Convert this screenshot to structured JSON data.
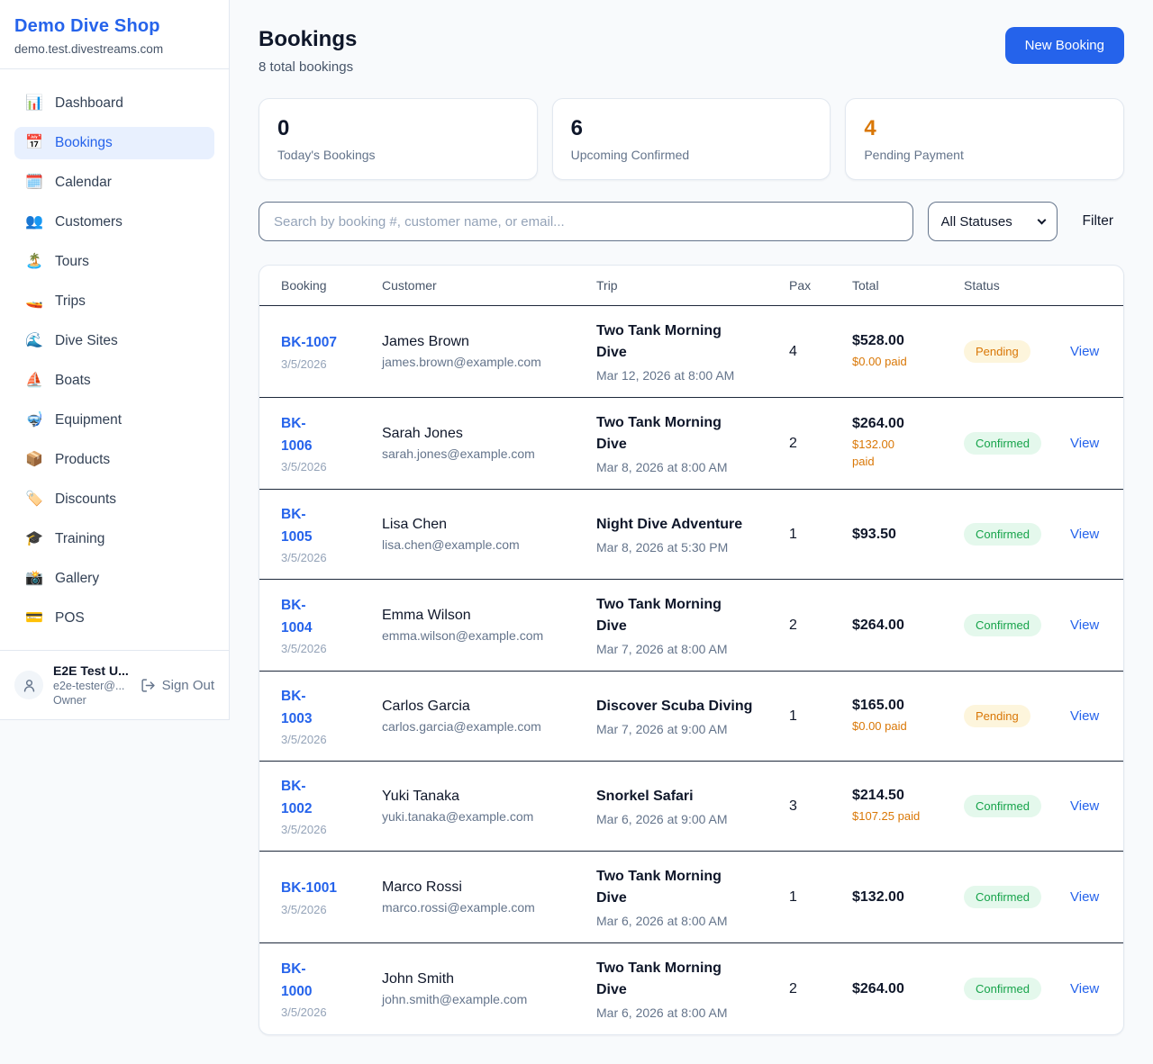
{
  "colors": {
    "accent": "#2563eb",
    "pending_bg": "#fdf5dc",
    "pending_text": "#d97706",
    "confirmed_bg": "#e4f8ec",
    "confirmed_text": "#16a34a",
    "paid_orange": "#d97706",
    "stat_default": "#0f172a",
    "stat_warning": "#d97706"
  },
  "sidebar": {
    "brand": {
      "name": "Demo Dive Shop",
      "domain": "demo.test.divestreams.com"
    },
    "items": [
      {
        "icon": "📊",
        "label": "Dashboard",
        "active": false
      },
      {
        "icon": "📅",
        "label": "Bookings",
        "active": true
      },
      {
        "icon": "🗓️",
        "label": "Calendar",
        "active": false
      },
      {
        "icon": "👥",
        "label": "Customers",
        "active": false
      },
      {
        "icon": "🏝️",
        "label": "Tours",
        "active": false
      },
      {
        "icon": "🚤",
        "label": "Trips",
        "active": false
      },
      {
        "icon": "🌊",
        "label": "Dive Sites",
        "active": false
      },
      {
        "icon": "⛵",
        "label": "Boats",
        "active": false
      },
      {
        "icon": "🤿",
        "label": "Equipment",
        "active": false
      },
      {
        "icon": "📦",
        "label": "Products",
        "active": false
      },
      {
        "icon": "🏷️",
        "label": "Discounts",
        "active": false
      },
      {
        "icon": "🎓",
        "label": "Training",
        "active": false
      },
      {
        "icon": "📸",
        "label": "Gallery",
        "active": false
      },
      {
        "icon": "💳",
        "label": "POS",
        "active": false
      }
    ],
    "user": {
      "name": "E2E Test U...",
      "email": "e2e-tester@...",
      "role": "Owner",
      "sign_out_label": "Sign Out"
    }
  },
  "header": {
    "title": "Bookings",
    "subtitle": "8 total bookings",
    "new_booking_label": "New Booking"
  },
  "stats": [
    {
      "value": "0",
      "label": "Today's Bookings",
      "value_color": "#0f172a"
    },
    {
      "value": "6",
      "label": "Upcoming Confirmed",
      "value_color": "#0f172a"
    },
    {
      "value": "4",
      "label": "Pending Payment",
      "value_color": "#d97706"
    }
  ],
  "filters": {
    "search_placeholder": "Search by booking #, customer name, or email...",
    "status_selected": "All Statuses",
    "filter_label": "Filter"
  },
  "table": {
    "columns": [
      "Booking",
      "Customer",
      "Trip",
      "Pax",
      "Total",
      "Status"
    ],
    "view_label": "View",
    "status_styles": {
      "Pending": {
        "bg": "#fdf5dc",
        "text": "#d97706"
      },
      "Confirmed": {
        "bg": "#e4f8ec",
        "text": "#16a34a"
      }
    },
    "rows": [
      {
        "id": "BK-1007",
        "id_display": [
          "BK-1007"
        ],
        "date": "3/5/2026",
        "customer": "James Brown",
        "email": "james.brown@example.com",
        "trip": "Two Tank Morning Dive",
        "trip_time": "Mar 12, 2026 at 8:00 AM",
        "pax": "4",
        "total": "$528.00",
        "paid_display": [
          "$0.00 paid"
        ],
        "status": "Pending"
      },
      {
        "id": "BK-1006",
        "id_display": [
          "BK-",
          "1006"
        ],
        "date": "3/5/2026",
        "customer": "Sarah Jones",
        "email": "sarah.jones@example.com",
        "trip": "Two Tank Morning Dive",
        "trip_time": "Mar 8, 2026 at 8:00 AM",
        "pax": "2",
        "total": "$264.00",
        "paid_display": [
          "$132.00",
          "paid"
        ],
        "status": "Confirmed"
      },
      {
        "id": "BK-1005",
        "id_display": [
          "BK-",
          "1005"
        ],
        "date": "3/5/2026",
        "customer": "Lisa Chen",
        "email": "lisa.chen@example.com",
        "trip": "Night Dive Adventure",
        "trip_time": "Mar 8, 2026 at 5:30 PM",
        "pax": "1",
        "total": "$93.50",
        "paid_display": null,
        "status": "Confirmed"
      },
      {
        "id": "BK-1004",
        "id_display": [
          "BK-",
          "1004"
        ],
        "date": "3/5/2026",
        "customer": "Emma Wilson",
        "email": "emma.wilson@example.com",
        "trip": "Two Tank Morning Dive",
        "trip_time": "Mar 7, 2026 at 8:00 AM",
        "pax": "2",
        "total": "$264.00",
        "paid_display": null,
        "status": "Confirmed"
      },
      {
        "id": "BK-1003",
        "id_display": [
          "BK-",
          "1003"
        ],
        "date": "3/5/2026",
        "customer": "Carlos Garcia",
        "email": "carlos.garcia@example.com",
        "trip": "Discover Scuba Diving",
        "trip_time": "Mar 7, 2026 at 9:00 AM",
        "pax": "1",
        "total": "$165.00",
        "paid_display": [
          "$0.00 paid"
        ],
        "status": "Pending"
      },
      {
        "id": "BK-1002",
        "id_display": [
          "BK-",
          "1002"
        ],
        "date": "3/5/2026",
        "customer": "Yuki Tanaka",
        "email": "yuki.tanaka@example.com",
        "trip": "Snorkel Safari",
        "trip_time": "Mar 6, 2026 at 9:00 AM",
        "pax": "3",
        "total": "$214.50",
        "paid_display": [
          "$107.25 paid"
        ],
        "status": "Confirmed"
      },
      {
        "id": "BK-1001",
        "id_display": [
          "BK-1001"
        ],
        "date": "3/5/2026",
        "customer": "Marco Rossi",
        "email": "marco.rossi@example.com",
        "trip": "Two Tank Morning Dive",
        "trip_time": "Mar 6, 2026 at 8:00 AM",
        "pax": "1",
        "total": "$132.00",
        "paid_display": null,
        "status": "Confirmed"
      },
      {
        "id": "BK-1000",
        "id_display": [
          "BK-",
          "1000"
        ],
        "date": "3/5/2026",
        "customer": "John Smith",
        "email": "john.smith@example.com",
        "trip": "Two Tank Morning Dive",
        "trip_time": "Mar 6, 2026 at 8:00 AM",
        "pax": "2",
        "total": "$264.00",
        "paid_display": null,
        "status": "Confirmed"
      }
    ]
  }
}
